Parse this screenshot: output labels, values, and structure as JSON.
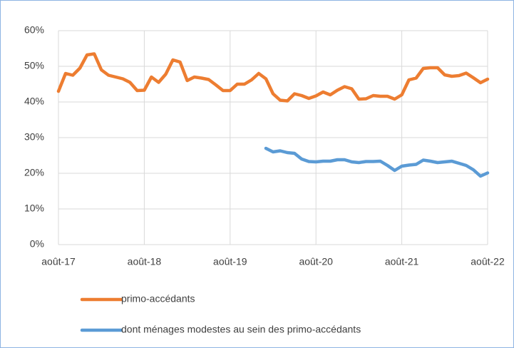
{
  "chart_data": {
    "type": "line",
    "categories": [
      "août-17",
      null,
      null,
      null,
      null,
      null,
      null,
      null,
      null,
      null,
      null,
      null,
      "août-18",
      null,
      null,
      null,
      null,
      null,
      null,
      null,
      null,
      null,
      null,
      null,
      "août-19",
      null,
      null,
      null,
      null,
      null,
      null,
      null,
      null,
      null,
      null,
      null,
      "août-20",
      null,
      null,
      null,
      null,
      null,
      null,
      null,
      null,
      null,
      null,
      null,
      "août-21",
      null,
      null,
      null,
      null,
      null,
      null,
      null,
      null,
      null,
      null,
      null,
      "août-22"
    ],
    "series": [
      {
        "name": "primo-accédants",
        "color": "#ed7d31",
        "values": [
          43,
          48,
          47.5,
          49.5,
          53.2,
          53.5,
          49,
          47.5,
          47,
          46.5,
          45.5,
          43.2,
          43.3,
          47,
          45.5,
          47.8,
          51.8,
          51.2,
          46,
          47,
          46.7,
          46.3,
          44.8,
          43.2,
          43.2,
          45,
          45,
          46.2,
          48,
          46.5,
          42.3,
          40.5,
          40.3,
          42.3,
          41.8,
          41,
          41.7,
          42.8,
          42,
          43.3,
          44.3,
          43.7,
          40.8,
          40.9,
          41.8,
          41.6,
          41.6,
          40.8,
          42,
          46.2,
          46.7,
          49.4,
          49.6,
          49.6,
          47.6,
          47.2,
          47.4,
          48.1,
          46.8,
          45.4,
          46.4
        ]
      },
      {
        "name": "dont ménages modestes au sein des primo-accédants",
        "color": "#5b9bd5",
        "values": [
          null,
          null,
          null,
          null,
          null,
          null,
          null,
          null,
          null,
          null,
          null,
          null,
          null,
          null,
          null,
          null,
          null,
          null,
          null,
          null,
          null,
          null,
          null,
          null,
          null,
          null,
          null,
          null,
          null,
          27,
          26,
          26.3,
          25.8,
          25.6,
          24,
          23.3,
          23.2,
          23.4,
          23.4,
          23.8,
          23.8,
          23.2,
          23,
          23.3,
          23.3,
          23.4,
          22.2,
          20.8,
          22,
          22.3,
          22.5,
          23.7,
          23.4,
          23,
          23.2,
          23.4,
          22.8,
          22.2,
          21,
          19.2,
          20.1
        ]
      }
    ],
    "ylim": [
      0,
      60
    ],
    "yticks": [
      {
        "value": 0,
        "label": "0%"
      },
      {
        "value": 10,
        "label": "10%"
      },
      {
        "value": 20,
        "label": "20%"
      },
      {
        "value": 30,
        "label": "30%"
      },
      {
        "value": 40,
        "label": "40%"
      },
      {
        "value": 50,
        "label": "50%"
      },
      {
        "value": 60,
        "label": "60%"
      }
    ],
    "grid": true
  }
}
